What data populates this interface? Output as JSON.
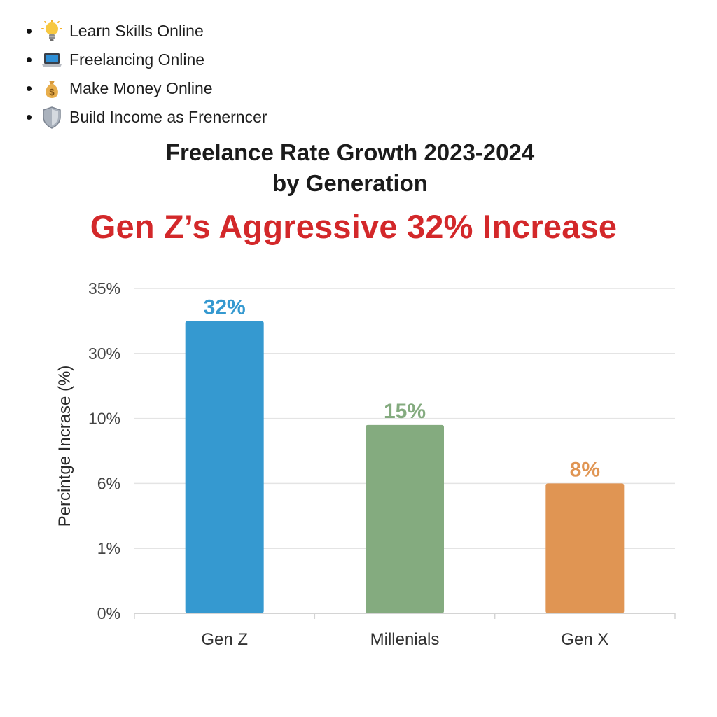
{
  "bullets": [
    {
      "icon": "lightbulb-icon",
      "label": "Learn Skills Online"
    },
    {
      "icon": "laptop-icon",
      "label": "Freelancing Online"
    },
    {
      "icon": "money-bag-icon",
      "label": "Make Money Online"
    },
    {
      "icon": "shield-icon",
      "label": "Build Income as Frenerncer"
    }
  ],
  "colors": {
    "accent_red": "#d3282a",
    "gen_z": "#3599d0",
    "millenials": "#84ab7f",
    "gen_x": "#e09553"
  },
  "chart_data": {
    "type": "bar",
    "title": "Freelance Rate Growth 2023-2024\nby Generation",
    "subtitle": "Gen Z’s Aggressive 32% Increase",
    "xlabel": "",
    "ylabel": "Percintge Incrase (%)",
    "categories": [
      "Gen Z",
      "Millenials",
      "Gen X"
    ],
    "values": [
      32,
      15,
      8
    ],
    "value_labels": [
      "32%",
      "15%",
      "8%"
    ],
    "bar_colors": [
      "#3599d0",
      "#84ab7f",
      "#e09553"
    ],
    "label_colors": [
      "#3599d0",
      "#84ab7f",
      "#e09553"
    ],
    "y_tick_labels": [
      "0%",
      "1%",
      "6%",
      "10%",
      "30%",
      "35%"
    ],
    "y_tick_note": "Tick labels are evenly spaced but not linear as printed",
    "bar_height_in_ticks": [
      4.5,
      2.9,
      2.0
    ],
    "grid": true
  }
}
